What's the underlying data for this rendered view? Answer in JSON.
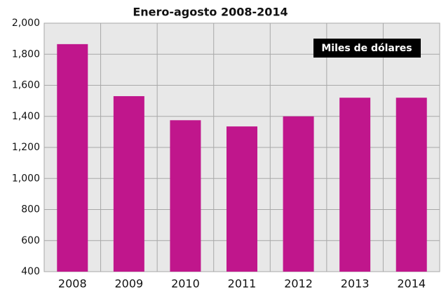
{
  "chart_data": {
    "type": "bar",
    "subtitle": "Enero-agosto 2008-2014",
    "annotation": "Miles de dólares",
    "categories": [
      "2008",
      "2009",
      "2010",
      "2011",
      "2012",
      "2013",
      "2014"
    ],
    "values": [
      1865,
      1530,
      1375,
      1335,
      1400,
      1520,
      1520
    ],
    "color": "#c0168c",
    "ylim": [
      400,
      2000
    ],
    "yticks": [
      {
        "value": 400,
        "label": "400"
      },
      {
        "value": 600,
        "label": "600"
      },
      {
        "value": 800,
        "label": "800"
      },
      {
        "value": 1000,
        "label": "1,000"
      },
      {
        "value": 1200,
        "label": "1,200"
      },
      {
        "value": 1400,
        "label": "1,400"
      },
      {
        "value": 1600,
        "label": "1,600"
      },
      {
        "value": 1800,
        "label": "1,800"
      },
      {
        "value": 2000,
        "label": "2,000"
      }
    ],
    "grid": true
  }
}
